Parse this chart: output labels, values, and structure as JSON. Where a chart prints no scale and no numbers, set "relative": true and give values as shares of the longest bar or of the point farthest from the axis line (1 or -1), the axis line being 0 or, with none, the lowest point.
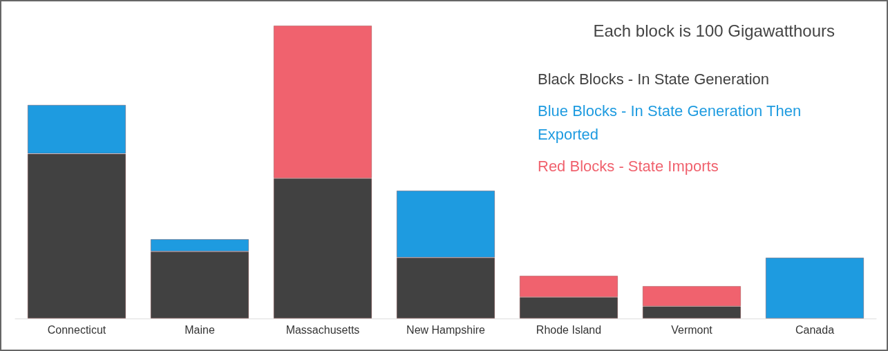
{
  "chart_data": {
    "type": "bar",
    "title": "Each block is 100 Gigawatthours",
    "stacked": true,
    "relative": true,
    "legend": "top right",
    "categories": [
      "Connecticut",
      "Maine",
      "Massachusetts",
      "New Hampshire",
      "Rhode Island",
      "Vermont",
      "Canada"
    ],
    "series": [
      {
        "name": "Black Blocks - In State Generation",
        "color": "#414141",
        "values": [
          0.5625,
          0.229,
          0.479,
          0.208,
          0.073,
          0.042,
          null
        ]
      },
      {
        "name": "Blue Blocks - In State Generation Then Exported",
        "color": "#1e9be0",
        "values": [
          0.167,
          0.042,
          null,
          0.229,
          null,
          null,
          0.208
        ]
      },
      {
        "name": "Red Blocks - State Imports",
        "color": "#f0626e",
        "values": [
          null,
          null,
          0.521,
          null,
          0.073,
          0.069,
          null
        ]
      }
    ]
  }
}
